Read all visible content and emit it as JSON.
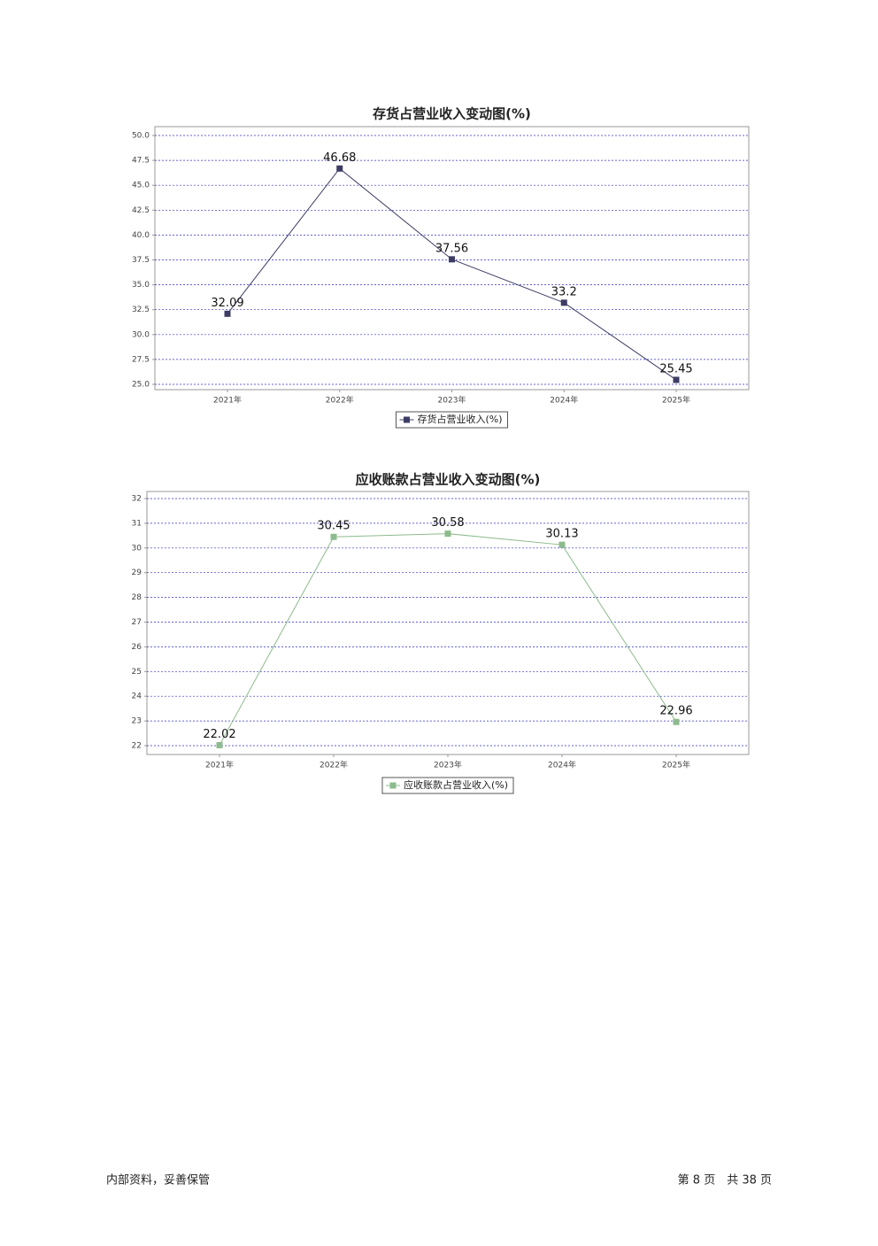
{
  "chart_data": [
    {
      "type": "line",
      "title": "存货占营业收入变动图(%)",
      "categories": [
        "2021年",
        "2022年",
        "2023年",
        "2024年",
        "2025年"
      ],
      "series": [
        {
          "name": "存货占营业收入(%)",
          "color": "#3c3c64",
          "values": [
            32.09,
            46.68,
            37.56,
            33.2,
            25.45
          ]
        }
      ],
      "ylim": [
        25,
        50
      ],
      "yticks": [
        {
          "value": 25,
          "label": "25.0"
        },
        27.5,
        {
          "value": 30,
          "label": "30.0"
        },
        32.5,
        {
          "value": 35,
          "label": "35.0"
        },
        37.5,
        {
          "value": 40,
          "label": "40.0"
        },
        42.5,
        {
          "value": 45,
          "label": "45.0"
        },
        47.5,
        {
          "value": 50,
          "label": "50.0"
        }
      ],
      "grid": true,
      "legend": "bottom"
    },
    {
      "type": "line",
      "title": "应收账款占营业收入变动图(%)",
      "categories": [
        "2021年",
        "2022年",
        "2023年",
        "2024年",
        "2025年"
      ],
      "series": [
        {
          "name": "应收账款占营业收入(%)",
          "color": "#8dbb8d",
          "values": [
            22.02,
            30.45,
            30.58,
            30.13,
            22.96
          ]
        }
      ],
      "ylim": [
        22,
        32
      ],
      "yticks": [
        22,
        23,
        24,
        25,
        26,
        27,
        28,
        29,
        30,
        31,
        32
      ],
      "grid": true,
      "legend": "bottom"
    }
  ],
  "footer": {
    "left": "内部资料，妥善保管",
    "right": "第 8 页　共 38 页"
  }
}
